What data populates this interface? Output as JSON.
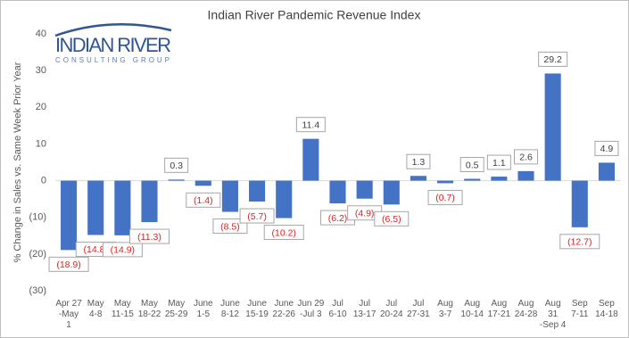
{
  "logo": {
    "name": "INDIAN RIVER",
    "tagline": "CONSULTING GROUP"
  },
  "chart_data": {
    "type": "bar",
    "title": "Indian River Pandemic Revenue Index",
    "y_label": "% Change in Sales vs. Same Week Prior Year",
    "categories": [
      [
        "Apr 27",
        "-May",
        "1"
      ],
      [
        "May",
        "4-8"
      ],
      [
        "May",
        "11-15"
      ],
      [
        "May",
        "18-22"
      ],
      [
        "May",
        "25-29"
      ],
      [
        "June",
        "1-5"
      ],
      [
        "June",
        "8-12"
      ],
      [
        "June",
        "15-19"
      ],
      [
        "June",
        "22-26"
      ],
      [
        "Jun 29",
        "-Jul 3"
      ],
      [
        "Jul",
        "6-10"
      ],
      [
        "Jul",
        "13-17"
      ],
      [
        "Jul",
        "20-24"
      ],
      [
        "Jul",
        "27-31"
      ],
      [
        "Aug",
        "3-7"
      ],
      [
        "Aug",
        "10-14"
      ],
      [
        "Aug",
        "17-21"
      ],
      [
        "Aug",
        "24-28"
      ],
      [
        "Aug",
        "31",
        "-Sep 4"
      ],
      [
        "Sep",
        "7-11"
      ],
      [
        "Sep",
        "14-18"
      ]
    ],
    "values": [
      -18.9,
      -14.8,
      -14.9,
      -11.3,
      0.3,
      -1.4,
      -8.5,
      -5.7,
      -10.2,
      11.4,
      -6.2,
      -4.9,
      -6.5,
      1.3,
      -0.7,
      0.5,
      1.1,
      2.6,
      29.2,
      -12.7,
      4.9
    ],
    "value_labels": [
      "(18.9)",
      "(14.8)",
      "(14.9)",
      "(11.3)",
      "0.3",
      "(1.4)",
      "(8.5)",
      "(5.7)",
      "(10.2)",
      "11.4",
      "(6.2)",
      "(4.9)",
      "(6.5)",
      "1.3",
      "(0.7)",
      "0.5",
      "1.1",
      "2.6",
      "29.2",
      "(12.7)",
      "4.9"
    ],
    "color": "#4472c4",
    "negative_label_color": "#e02020",
    "positive_label_color": "#404040",
    "ylim": [
      -30,
      40
    ],
    "yticks": [
      {
        "value": -30,
        "label": "(30)"
      },
      {
        "value": -20,
        "label": "(20)"
      },
      {
        "value": -10,
        "label": "(10)"
      },
      0,
      10,
      20,
      30,
      40
    ],
    "grid": false
  }
}
